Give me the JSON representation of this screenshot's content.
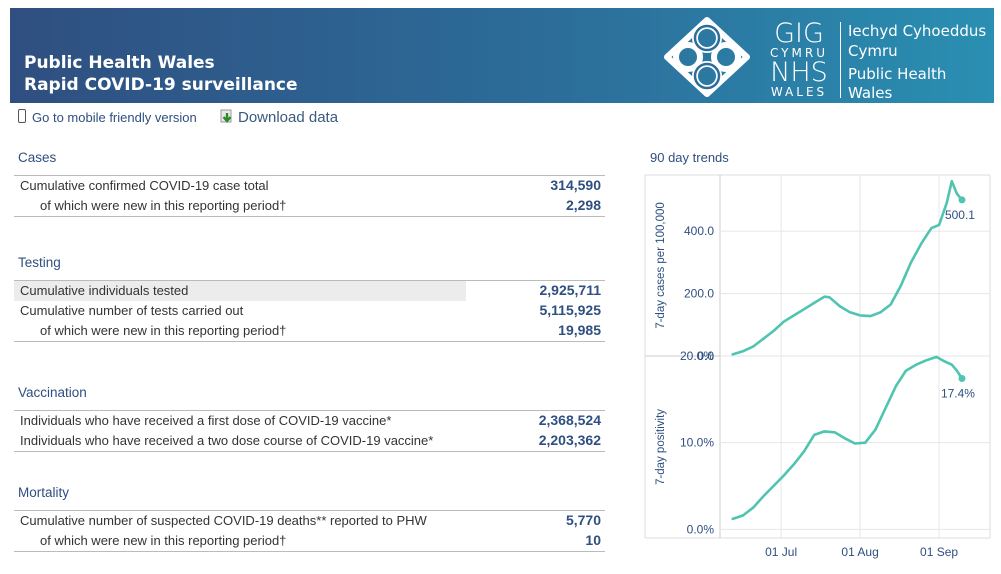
{
  "header": {
    "title_line1": "Public Health Wales",
    "title_line2": "Rapid COVID-19 surveillance",
    "logo": {
      "gig": "GIG",
      "cymru": "CYMRU",
      "nhs": "NHS",
      "wales": "WALES",
      "org_line1": "Iechyd Cyhoeddus",
      "org_line2": "Cymru",
      "org_line3": "Public Health",
      "org_line4": "Wales"
    }
  },
  "toolbar": {
    "mobile_label": "Go to mobile friendly version",
    "download_label": "Download data"
  },
  "sections": {
    "cases": {
      "title": "Cases",
      "rows": [
        {
          "label": "Cumulative confirmed COVID-19 case total",
          "value": "314,590"
        },
        {
          "label": "of which were new in this reporting period†",
          "value": "2,298"
        }
      ]
    },
    "testing": {
      "title": "Testing",
      "rows": [
        {
          "label": "Cumulative individuals tested",
          "value": "2,925,711"
        },
        {
          "label": "Cumulative number of tests carried out",
          "value": "5,115,925"
        },
        {
          "label": "of which were new in this reporting period†",
          "value": "19,985"
        }
      ]
    },
    "vaccination": {
      "title": "Vaccination",
      "rows": [
        {
          "label": "Individuals who have received a first dose of COVID-19 vaccine*",
          "value": "2,368,524"
        },
        {
          "label": "Individuals who have received a two dose course of COVID-19 vaccine*",
          "value": "2,203,362"
        }
      ]
    },
    "mortality": {
      "title": "Mortality",
      "rows": [
        {
          "label": "Cumulative number of suspected COVID-19 deaths** reported to PHW",
          "value": "5,770"
        },
        {
          "label": "of which were new in this reporting period†",
          "value": "10"
        }
      ]
    }
  },
  "trends_title": "90 day trends",
  "chart_data": [
    {
      "type": "line",
      "title": "",
      "ylabel": "7-day cases per 100,000",
      "xlabel": "",
      "ylim": [
        0,
        580
      ],
      "yticks": [
        0,
        200,
        400
      ],
      "ytick_labels": [
        "0.0",
        "200.0",
        "400.0"
      ],
      "grid": true,
      "color": "#4fc4b0",
      "end_label": "500.1",
      "x": [
        "2021-06-12",
        "2021-06-16",
        "2021-06-20",
        "2021-06-24",
        "2021-06-28",
        "2021-07-02",
        "2021-07-06",
        "2021-07-10",
        "2021-07-14",
        "2021-07-18",
        "2021-07-20",
        "2021-07-24",
        "2021-07-28",
        "2021-08-01",
        "2021-08-05",
        "2021-08-09",
        "2021-08-13",
        "2021-08-17",
        "2021-08-21",
        "2021-08-25",
        "2021-08-29",
        "2021-09-01",
        "2021-09-04",
        "2021-09-06",
        "2021-09-08",
        "2021-09-10"
      ],
      "y": [
        5,
        15,
        30,
        55,
        80,
        110,
        130,
        150,
        170,
        190,
        188,
        160,
        140,
        130,
        128,
        140,
        165,
        225,
        300,
        360,
        410,
        420,
        490,
        560,
        520,
        500.1
      ]
    },
    {
      "type": "line",
      "title": "",
      "ylabel": "7-day positivity",
      "xlabel": "",
      "ylim": [
        -1,
        20
      ],
      "yticks": [
        0,
        10,
        20
      ],
      "ytick_labels": [
        "0.0%",
        "10.0%",
        "20.0%"
      ],
      "grid": true,
      "color": "#4fc4b0",
      "end_label": "17.4%",
      "x": [
        "2021-06-12",
        "2021-06-16",
        "2021-06-20",
        "2021-06-24",
        "2021-06-28",
        "2021-07-02",
        "2021-07-06",
        "2021-07-10",
        "2021-07-14",
        "2021-07-18",
        "2021-07-22",
        "2021-07-26",
        "2021-07-30",
        "2021-08-03",
        "2021-08-07",
        "2021-08-11",
        "2021-08-15",
        "2021-08-19",
        "2021-08-23",
        "2021-08-27",
        "2021-08-31",
        "2021-09-03",
        "2021-09-06",
        "2021-09-08",
        "2021-09-10"
      ],
      "y": [
        1.2,
        1.6,
        2.5,
        3.8,
        5.0,
        6.2,
        7.5,
        9.0,
        10.9,
        11.3,
        11.2,
        10.5,
        9.9,
        10.0,
        11.5,
        14.0,
        16.5,
        18.3,
        19.0,
        19.5,
        19.9,
        19.4,
        19.0,
        18.3,
        17.4
      ]
    }
  ],
  "x_axis": {
    "tick_dates": [
      "2021-07-01",
      "2021-08-01",
      "2021-09-01"
    ],
    "tick_labels": [
      "01 Jul",
      "01 Aug",
      "01 Sep"
    ],
    "range": [
      "2021-06-07",
      "2021-09-21"
    ]
  }
}
